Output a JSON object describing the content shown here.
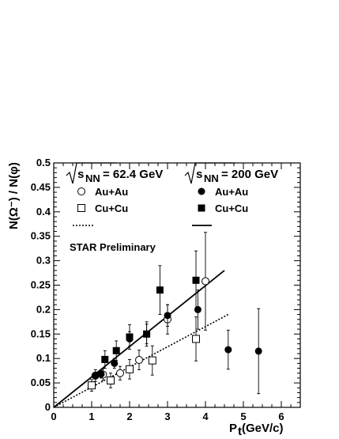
{
  "chart_data": {
    "type": "scatter",
    "title": "",
    "xlabel": "P",
    "xlabel_sub": "t",
    "xlabel_unit": " (GeV/c)",
    "ylabel": "N(Ω⁻) / N(φ)",
    "xlim": [
      0,
      6.5
    ],
    "ylim": [
      0,
      0.5
    ],
    "x_ticks": [
      0,
      1,
      2,
      3,
      4,
      5,
      6
    ],
    "y_ticks": [
      0,
      0.05,
      0.1,
      0.15,
      0.2,
      0.25,
      0.3,
      0.35,
      0.4,
      0.45,
      0.5
    ],
    "x_tick_labels": [
      "0",
      "1",
      "2",
      "3",
      "4",
      "5",
      "6"
    ],
    "y_tick_labels": [
      "0",
      "0.05",
      "0.1",
      "0.15",
      "0.2",
      "0.25",
      "0.3",
      "0.35",
      "0.4",
      "0.45",
      "0.5"
    ],
    "legend": {
      "header_left": "= 62.4 GeV",
      "header_right": "= 200 GeV",
      "sqrt_symbol_sub": "NN",
      "sqrt_symbol_main": "s",
      "au_au": "Au+Au",
      "cu_cu": "Cu+Cu"
    },
    "annotation": "STAR Preliminary",
    "series": [
      {
        "name": "Au+Au",
        "energy": "62.4 GeV",
        "marker": "open-circle",
        "points": [
          {
            "x": 1.1,
            "y": 0.065,
            "err": 0.012
          },
          {
            "x": 1.3,
            "y": 0.067,
            "err": 0.012
          },
          {
            "x": 1.75,
            "y": 0.07,
            "err": 0.014
          },
          {
            "x": 2.25,
            "y": 0.097,
            "err": 0.02
          },
          {
            "x": 3.0,
            "y": 0.18,
            "err": 0.03
          },
          {
            "x": 4.0,
            "y": 0.258,
            "err": 0.1
          }
        ]
      },
      {
        "name": "Cu+Cu",
        "energy": "62.4 GeV",
        "marker": "open-square",
        "points": [
          {
            "x": 1.0,
            "y": 0.045,
            "err": 0.012
          },
          {
            "x": 1.5,
            "y": 0.055,
            "err": 0.015
          },
          {
            "x": 2.0,
            "y": 0.078,
            "err": 0.02
          },
          {
            "x": 2.6,
            "y": 0.096,
            "err": 0.03
          },
          {
            "x": 3.75,
            "y": 0.14,
            "err": 0.045
          }
        ]
      },
      {
        "name": "Au+Au",
        "energy": "200 GeV",
        "marker": "filled-circle",
        "points": [
          {
            "x": 1.1,
            "y": 0.065,
            "err": 0.007
          },
          {
            "x": 1.25,
            "y": 0.068,
            "err": 0.008
          },
          {
            "x": 1.6,
            "y": 0.09,
            "err": 0.01
          },
          {
            "x": 2.0,
            "y": 0.14,
            "err": 0.015
          },
          {
            "x": 2.45,
            "y": 0.15,
            "err": 0.02
          },
          {
            "x": 3.0,
            "y": 0.188,
            "err": 0.022
          },
          {
            "x": 3.8,
            "y": 0.2,
            "err": 0.04
          },
          {
            "x": 4.6,
            "y": 0.118,
            "err": 0.04
          },
          {
            "x": 5.4,
            "y": 0.115,
            "err": 0.087
          }
        ]
      },
      {
        "name": "Cu+Cu",
        "energy": "200 GeV",
        "marker": "filled-square",
        "points": [
          {
            "x": 1.35,
            "y": 0.098,
            "err": 0.018
          },
          {
            "x": 1.65,
            "y": 0.116,
            "err": 0.02
          },
          {
            "x": 2.0,
            "y": 0.144,
            "err": 0.025
          },
          {
            "x": 2.45,
            "y": 0.15,
            "err": 0.025
          },
          {
            "x": 2.8,
            "y": 0.24,
            "err": 0.05
          },
          {
            "x": 3.75,
            "y": 0.26,
            "err": 0.06
          }
        ]
      }
    ],
    "fit_lines": [
      {
        "energy": "62.4 GeV",
        "style": "dotted",
        "x": [
          0,
          4.6
        ],
        "y": [
          0,
          0.19
        ]
      },
      {
        "energy": "200 GeV",
        "style": "solid",
        "x": [
          0,
          4.5
        ],
        "y": [
          0,
          0.28
        ]
      }
    ]
  }
}
